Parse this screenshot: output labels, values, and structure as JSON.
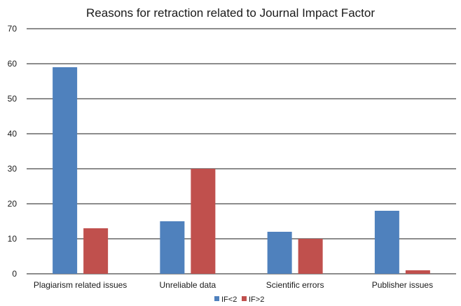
{
  "chart_data": {
    "type": "bar",
    "title": "Reasons for retraction related to Journal Impact Factor",
    "xlabel": "",
    "ylabel": "",
    "categories": [
      "Plagiarism related issues",
      "Unreliable data",
      "Scientific errors",
      "Publisher issues"
    ],
    "series": [
      {
        "name": "IF<2",
        "color": "#4f81bd",
        "values": [
          59,
          15,
          12,
          18
        ]
      },
      {
        "name": "IF>2",
        "color": "#c0504d",
        "values": [
          13,
          30,
          10,
          1
        ]
      }
    ],
    "ylim": [
      0,
      70
    ],
    "yticks": [
      0,
      10,
      20,
      30,
      40,
      50,
      60,
      70
    ],
    "grid": true,
    "legend": "bottom"
  }
}
